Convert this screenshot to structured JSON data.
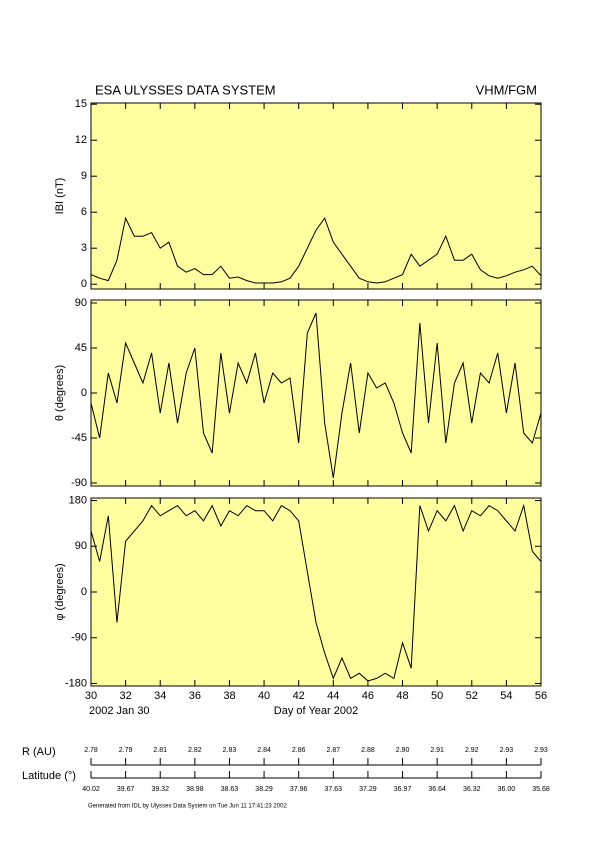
{
  "header": {
    "title": "ESA ULYSSES DATA SYSTEM",
    "instrument": "VHM/FGM"
  },
  "chart_data": [
    {
      "type": "line",
      "ylabel": "IBI (nT)",
      "color": "#000000",
      "background": "#ffffa0",
      "x": [
        30,
        30.5,
        31,
        31.5,
        32,
        32.5,
        33,
        33.5,
        34,
        34.5,
        35,
        35.5,
        36,
        36.5,
        37,
        37.5,
        38,
        38.5,
        39,
        39.5,
        40,
        40.5,
        41,
        41.5,
        42,
        42.5,
        43,
        43.5,
        44,
        44.5,
        45,
        45.5,
        46,
        46.5,
        47,
        47.5,
        48,
        48.5,
        49,
        49.5,
        50,
        50.5,
        51,
        51.5,
        52,
        52.5,
        53,
        53.5,
        54,
        54.5,
        55,
        55.5,
        56
      ],
      "values": [
        0.8,
        0.5,
        0.3,
        2,
        5.5,
        4,
        4,
        4.3,
        3,
        3.5,
        1.5,
        1,
        1.3,
        0.8,
        0.8,
        1.5,
        0.5,
        0.6,
        0.3,
        0.1,
        0.1,
        0.1,
        0.2,
        0.5,
        1.5,
        3,
        4.5,
        5.5,
        3.5,
        2.5,
        1.5,
        0.5,
        0.2,
        0.1,
        0.2,
        0.5,
        0.8,
        2.5,
        1.5,
        2,
        2.5,
        4,
        2,
        2,
        2.5,
        1.2,
        0.7,
        0.5,
        0.7,
        1,
        1.2,
        1.5,
        0.7
      ],
      "xlim": [
        30,
        56
      ],
      "xticks": [
        30,
        32,
        34,
        36,
        38,
        40,
        42,
        44,
        46,
        48,
        50,
        52,
        54,
        56
      ],
      "ylim": [
        -0.4,
        15.1
      ],
      "yticks": [
        0,
        3,
        6,
        9,
        12,
        15
      ]
    },
    {
      "type": "line",
      "ylabel": "θ (degrees)",
      "color": "#000000",
      "background": "#ffffa0",
      "x": [
        30,
        30.5,
        31,
        31.5,
        32,
        32.5,
        33,
        33.5,
        34,
        34.5,
        35,
        35.5,
        36,
        36.5,
        37,
        37.5,
        38,
        38.5,
        39,
        39.5,
        40,
        40.5,
        41,
        41.5,
        42,
        42.5,
        43,
        43.5,
        44,
        44.5,
        45,
        45.5,
        46,
        46.5,
        47,
        47.5,
        48,
        48.5,
        49,
        49.5,
        50,
        50.5,
        51,
        51.5,
        52,
        52.5,
        53,
        53.5,
        54,
        54.5,
        55,
        55.5,
        56
      ],
      "values": [
        -10,
        -45,
        20,
        -10,
        50,
        30,
        10,
        40,
        -20,
        30,
        -30,
        20,
        45,
        -40,
        -60,
        40,
        -20,
        30,
        10,
        40,
        -10,
        20,
        10,
        15,
        -50,
        60,
        80,
        -30,
        -85,
        -20,
        30,
        -40,
        20,
        5,
        10,
        -10,
        -40,
        -60,
        70,
        -30,
        50,
        -50,
        10,
        30,
        -30,
        20,
        10,
        40,
        -20,
        30,
        -40,
        -50,
        -20
      ],
      "xlim": [
        30,
        56
      ],
      "xticks": [
        30,
        32,
        34,
        36,
        38,
        40,
        42,
        44,
        46,
        48,
        50,
        52,
        54,
        56
      ],
      "ylim": [
        -93,
        93
      ],
      "yticks": [
        -90,
        -45,
        0,
        45,
        90
      ]
    },
    {
      "type": "line",
      "ylabel": "φ (degrees)",
      "xlabel": "Day of Year 2002",
      "annotation": "2002 Jan 30",
      "color": "#000000",
      "background": "#ffffa0",
      "x": [
        30,
        30.5,
        31,
        31.5,
        32,
        32.5,
        33,
        33.5,
        34,
        34.5,
        35,
        35.5,
        36,
        36.5,
        37,
        37.5,
        38,
        38.5,
        39,
        39.5,
        40,
        40.5,
        41,
        41.5,
        42,
        42.5,
        43,
        43.5,
        44,
        44.5,
        45,
        45.5,
        46,
        46.5,
        47,
        47.5,
        48,
        48.5,
        49,
        49.5,
        50,
        50.5,
        51,
        51.5,
        52,
        52.5,
        53,
        53.5,
        54,
        54.5,
        55,
        55.5,
        56
      ],
      "values": [
        120,
        60,
        150,
        -60,
        100,
        120,
        140,
        170,
        150,
        160,
        170,
        150,
        160,
        140,
        170,
        130,
        160,
        150,
        170,
        160,
        160,
        140,
        170,
        160,
        140,
        40,
        -60,
        -120,
        -170,
        -130,
        -170,
        -160,
        -175,
        -170,
        -160,
        -170,
        -100,
        -150,
        170,
        120,
        160,
        140,
        170,
        120,
        160,
        150,
        170,
        160,
        140,
        120,
        170,
        80,
        60
      ],
      "xlim": [
        30,
        56
      ],
      "xticks": [
        30,
        32,
        34,
        36,
        38,
        40,
        42,
        44,
        46,
        48,
        50,
        52,
        54,
        56
      ],
      "ylim": [
        -185,
        185
      ],
      "yticks": [
        -180,
        -90,
        0,
        90,
        180
      ]
    }
  ],
  "ephemeris": {
    "r_label": "R (AU)",
    "r_values": [
      "2.78",
      "2.79",
      "2.81",
      "2.82",
      "2.83",
      "2.84",
      "2.86",
      "2.87",
      "2.88",
      "2.90",
      "2.91",
      "2.92",
      "2.93",
      "2.93"
    ],
    "lat_label": "Latitude (°)",
    "lat_values": [
      "40.02",
      "39.67",
      "39.32",
      "38.98",
      "38.63",
      "38.29",
      "37.96",
      "37.63",
      "37.29",
      "36.97",
      "36.64",
      "36.32",
      "36.00",
      "35.68"
    ]
  },
  "footer": "Generated from IDL by Ulysses Data System on Tue Jun 11 17:41:23 2002"
}
